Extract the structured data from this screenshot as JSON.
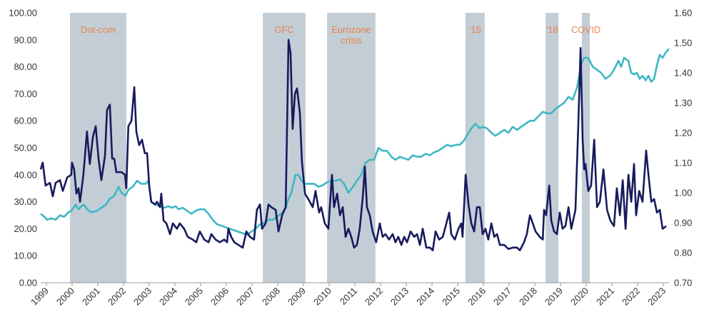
{
  "chart_data": {
    "type": "line",
    "xlim": [
      1998.78,
      2023.22
    ],
    "xticks": [
      1999,
      2000,
      2001,
      2002,
      2003,
      2004,
      2005,
      2006,
      2007,
      2008,
      2009,
      2010,
      2011,
      2012,
      2013,
      2014,
      2015,
      2016,
      2017,
      2018,
      2019,
      2020,
      2021,
      2022,
      2023
    ],
    "ylim": [
      0,
      100
    ],
    "yticks": [
      {
        "value": 0,
        "label": "0.00"
      },
      {
        "value": 10,
        "label": "10.00"
      },
      {
        "value": 20,
        "label": "20.00"
      },
      {
        "value": 30,
        "label": "30.00"
      },
      {
        "value": 40,
        "label": "40.00"
      },
      {
        "value": 50,
        "label": "50.00"
      },
      {
        "value": 60,
        "label": "60.00"
      },
      {
        "value": 70,
        "label": "70.00"
      },
      {
        "value": 80,
        "label": "80.00"
      },
      {
        "value": 90,
        "label": "90.00"
      },
      {
        "value": 100,
        "label": "100.00"
      }
    ],
    "y2lim": [
      0.7,
      1.6
    ],
    "y2ticks": [
      {
        "value": 0.7,
        "label": "0.70"
      },
      {
        "value": 0.8,
        "label": "0.80"
      },
      {
        "value": 0.9,
        "label": "0.90"
      },
      {
        "value": 1.0,
        "label": "1.00"
      },
      {
        "value": 1.1,
        "label": "1.10"
      },
      {
        "value": 1.2,
        "label": "1.20"
      },
      {
        "value": 1.3,
        "label": "1.30"
      },
      {
        "value": 1.4,
        "label": "1.40"
      },
      {
        "value": 1.5,
        "label": "1.50"
      },
      {
        "value": 1.6,
        "label": "1.60"
      }
    ],
    "shade_color": "#c3cdd6",
    "shade_label_color": "#e8834a",
    "shaded_periods": [
      {
        "lines": [
          "Dot-com"
        ],
        "start": 1999.92,
        "end": 2002.11
      },
      {
        "lines": [
          "GFC"
        ],
        "start": 2007.42,
        "end": 2009.08
      },
      {
        "lines": [
          "Eurozone",
          "crisis"
        ],
        "start": 2009.92,
        "end": 2011.8
      },
      {
        "lines": [
          "'15"
        ],
        "start": 2015.3,
        "end": 2016.05
      },
      {
        "lines": [
          "'18"
        ],
        "start": 2018.42,
        "end": 2018.92
      },
      {
        "lines": [
          "COVID"
        ],
        "start": 2019.83,
        "end": 2020.14
      }
    ],
    "series": [
      {
        "color": "#3db8c2",
        "axis": "y2",
        "x": [
          1998.78,
          1998.92,
          1999.03,
          1999.19,
          1999.36,
          1999.53,
          1999.69,
          1999.86,
          1999.97,
          2000.14,
          2000.25,
          2000.36,
          2000.47,
          2000.58,
          2000.75,
          2000.97,
          2001.14,
          2001.31,
          2001.47,
          2001.64,
          2001.81,
          2001.92,
          2002.08,
          2002.19,
          2002.36,
          2002.53,
          2002.69,
          2002.86,
          2002.97,
          2003.08,
          2003.25,
          2003.42,
          2003.58,
          2003.75,
          2003.86,
          2004.03,
          2004.14,
          2004.31,
          2004.47,
          2004.64,
          2004.81,
          2004.97,
          2005.14,
          2005.31,
          2005.47,
          2005.64,
          2005.81,
          2005.97,
          2006.14,
          2006.31,
          2006.47,
          2006.64,
          2006.81,
          2006.97,
          2007.14,
          2007.31,
          2007.47,
          2007.64,
          2007.81,
          2007.97,
          2008.14,
          2008.31,
          2008.42,
          2008.53,
          2008.69,
          2008.81,
          2008.92,
          2009.08,
          2009.25,
          2009.42,
          2009.58,
          2009.75,
          2009.92,
          2010.08,
          2010.25,
          2010.42,
          2010.58,
          2010.75,
          2010.92,
          2011.08,
          2011.25,
          2011.42,
          2011.58,
          2011.75,
          2011.92,
          2012.08,
          2012.25,
          2012.42,
          2012.58,
          2012.75,
          2012.92,
          2013.08,
          2013.25,
          2013.42,
          2013.58,
          2013.75,
          2013.92,
          2014.08,
          2014.25,
          2014.42,
          2014.58,
          2014.75,
          2014.92,
          2015.08,
          2015.25,
          2015.42,
          2015.58,
          2015.69,
          2015.86,
          2015.97,
          2016.14,
          2016.31,
          2016.47,
          2016.64,
          2016.81,
          2016.97,
          2017.14,
          2017.31,
          2017.47,
          2017.64,
          2017.81,
          2017.97,
          2018.14,
          2018.31,
          2018.47,
          2018.64,
          2018.81,
          2018.97,
          2019.14,
          2019.31,
          2019.47,
          2019.64,
          2019.81,
          2019.92,
          2020.08,
          2020.25,
          2020.42,
          2020.58,
          2020.75,
          2020.92,
          2021.08,
          2021.25,
          2021.36,
          2021.47,
          2021.64,
          2021.75,
          2021.86,
          2021.97,
          2022.08,
          2022.19,
          2022.31,
          2022.42,
          2022.53,
          2022.64,
          2022.75,
          2022.86,
          2022.97,
          2023.11,
          2023.22
        ],
        "values": [
          0.93,
          0.92,
          0.91,
          0.915,
          0.91,
          0.925,
          0.92,
          0.935,
          0.94,
          0.96,
          0.945,
          0.955,
          0.96,
          0.945,
          0.935,
          0.94,
          0.95,
          0.96,
          0.98,
          0.99,
          1.02,
          1.0,
          0.99,
          1.01,
          1.02,
          1.04,
          1.03,
          1.03,
          1.04,
          0.97,
          0.96,
          0.955,
          0.95,
          0.955,
          0.95,
          0.955,
          0.945,
          0.95,
          0.94,
          0.93,
          0.94,
          0.945,
          0.945,
          0.93,
          0.91,
          0.895,
          0.89,
          0.885,
          0.88,
          0.875,
          0.87,
          0.865,
          0.86,
          0.87,
          0.88,
          0.895,
          0.9,
          0.91,
          0.91,
          0.92,
          0.93,
          0.95,
          0.98,
          1.0,
          1.06,
          1.06,
          1.04,
          1.03,
          1.03,
          1.03,
          1.02,
          1.025,
          1.035,
          1.04,
          1.04,
          1.045,
          1.03,
          1.0,
          1.02,
          1.04,
          1.06,
          1.1,
          1.11,
          1.11,
          1.15,
          1.14,
          1.14,
          1.12,
          1.11,
          1.12,
          1.115,
          1.11,
          1.125,
          1.12,
          1.12,
          1.13,
          1.125,
          1.135,
          1.14,
          1.15,
          1.16,
          1.155,
          1.16,
          1.16,
          1.175,
          1.2,
          1.22,
          1.23,
          1.215,
          1.22,
          1.215,
          1.2,
          1.19,
          1.2,
          1.21,
          1.2,
          1.22,
          1.21,
          1.22,
          1.23,
          1.24,
          1.24,
          1.255,
          1.27,
          1.265,
          1.265,
          1.28,
          1.29,
          1.3,
          1.32,
          1.31,
          1.35,
          1.43,
          1.45,
          1.45,
          1.42,
          1.41,
          1.4,
          1.38,
          1.39,
          1.41,
          1.44,
          1.42,
          1.45,
          1.44,
          1.4,
          1.395,
          1.4,
          1.38,
          1.39,
          1.375,
          1.39,
          1.37,
          1.38,
          1.425,
          1.46,
          1.45,
          1.47,
          1.48
        ]
      },
      {
        "color": "#171a5c",
        "axis": "y",
        "x": [
          1998.78,
          1998.86,
          1998.97,
          1999.14,
          1999.25,
          1999.36,
          1999.53,
          1999.64,
          1999.81,
          1999.97,
          2000.0,
          2000.08,
          2000.17,
          2000.25,
          2000.31,
          2000.44,
          2000.58,
          2000.69,
          2000.81,
          2000.92,
          2001.03,
          2001.14,
          2001.28,
          2001.36,
          2001.47,
          2001.56,
          2001.64,
          2001.72,
          2001.92,
          2002.06,
          2002.11,
          2002.19,
          2002.31,
          2002.42,
          2002.5,
          2002.61,
          2002.72,
          2002.83,
          2002.92,
          2003.0,
          2003.08,
          2003.22,
          2003.31,
          2003.42,
          2003.47,
          2003.56,
          2003.67,
          2003.81,
          2003.92,
          2004.08,
          2004.19,
          2004.36,
          2004.5,
          2004.69,
          2004.83,
          2004.97,
          2005.14,
          2005.31,
          2005.42,
          2005.58,
          2005.75,
          2005.92,
          2006.03,
          2006.08,
          2006.19,
          2006.31,
          2006.47,
          2006.64,
          2006.78,
          2006.92,
          2007.08,
          2007.19,
          2007.31,
          2007.39,
          2007.53,
          2007.64,
          2007.75,
          2007.92,
          2008.03,
          2008.17,
          2008.31,
          2008.42,
          2008.5,
          2008.58,
          2008.67,
          2008.75,
          2008.86,
          2008.94,
          2009.06,
          2009.19,
          2009.36,
          2009.47,
          2009.61,
          2009.69,
          2009.83,
          2009.97,
          2010.11,
          2010.19,
          2010.31,
          2010.42,
          2010.53,
          2010.64,
          2010.75,
          2010.86,
          2010.97,
          2011.08,
          2011.19,
          2011.31,
          2011.39,
          2011.47,
          2011.58,
          2011.69,
          2011.83,
          2011.97,
          2012.08,
          2012.19,
          2012.33,
          2012.47,
          2012.58,
          2012.69,
          2012.81,
          2012.92,
          2013.03,
          2013.17,
          2013.31,
          2013.42,
          2013.53,
          2013.64,
          2013.78,
          2013.92,
          2014.03,
          2014.14,
          2014.28,
          2014.42,
          2014.56,
          2014.67,
          2014.75,
          2014.89,
          2015.03,
          2015.14,
          2015.19,
          2015.31,
          2015.42,
          2015.53,
          2015.64,
          2015.75,
          2015.86,
          2015.97,
          2016.08,
          2016.19,
          2016.31,
          2016.42,
          2016.53,
          2016.64,
          2016.81,
          2016.97,
          2017.14,
          2017.31,
          2017.42,
          2017.58,
          2017.69,
          2017.81,
          2017.92,
          2018.03,
          2018.19,
          2018.31,
          2018.36,
          2018.44,
          2018.56,
          2018.64,
          2018.75,
          2018.86,
          2018.97,
          2019.08,
          2019.19,
          2019.31,
          2019.42,
          2019.58,
          2019.69,
          2019.78,
          2019.86,
          2019.92,
          2019.97,
          2020.08,
          2020.19,
          2020.31,
          2020.42,
          2020.53,
          2020.67,
          2020.81,
          2020.94,
          2021.08,
          2021.19,
          2021.31,
          2021.42,
          2021.53,
          2021.64,
          2021.75,
          2021.86,
          2021.94,
          2022.06,
          2022.19,
          2022.33,
          2022.42,
          2022.53,
          2022.64,
          2022.75,
          2022.86,
          2022.97,
          2023.11
        ],
        "values": [
          42,
          44.5,
          36,
          37,
          32,
          37,
          38,
          34,
          39,
          40,
          44.5,
          42,
          33,
          35,
          30,
          40,
          56,
          44,
          54,
          58,
          46,
          38,
          47,
          64,
          66,
          46,
          46,
          41,
          41,
          40,
          35,
          58,
          60,
          72.5,
          56,
          51,
          53,
          48,
          48,
          36,
          30,
          29,
          30,
          28,
          33,
          23,
          22,
          18,
          22,
          20,
          22,
          20,
          17,
          16,
          15,
          19,
          16,
          15,
          18,
          16,
          15,
          16,
          15,
          20,
          17,
          15,
          14,
          13,
          19,
          17,
          16,
          27,
          29,
          20,
          22,
          29,
          28,
          27,
          19,
          25,
          28,
          90,
          85,
          57,
          70,
          72,
          63,
          45,
          33,
          31,
          28,
          34,
          26,
          28,
          22,
          20,
          40,
          28,
          33,
          25,
          28,
          17,
          20,
          17,
          13,
          14,
          20,
          32,
          43,
          28,
          25,
          19,
          15,
          22,
          17,
          18,
          16,
          18,
          15,
          17,
          14,
          17,
          15,
          19,
          17,
          18,
          14,
          20,
          13,
          13,
          12,
          19,
          16,
          17,
          22,
          26,
          18,
          16,
          20,
          22,
          17,
          40,
          29,
          22,
          19,
          28,
          28,
          18,
          20,
          16,
          22,
          17,
          18,
          14,
          14,
          12.5,
          13,
          13,
          12,
          15,
          18,
          25,
          22,
          19,
          17,
          16,
          27,
          25,
          36,
          23,
          19,
          18,
          26,
          20,
          21,
          28,
          20,
          27,
          58,
          87,
          53,
          42,
          44,
          34,
          36,
          53,
          28,
          30,
          42,
          27,
          23,
          21,
          35,
          25,
          38,
          20,
          40,
          30,
          44,
          25,
          34,
          30,
          49,
          40,
          30,
          31,
          26,
          27,
          20,
          21
        ]
      }
    ]
  }
}
